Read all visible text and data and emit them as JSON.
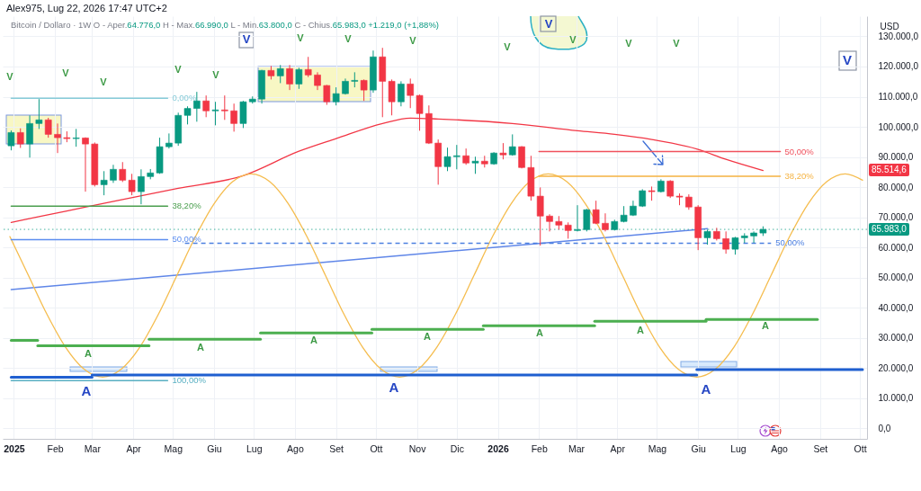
{
  "chart_data": {
    "type": "candlestick",
    "title": "Alex975, Lug 22, 2026 17:47 UTC+2",
    "subtitle": "Bitcoin / Dollaro · 1W O - Aper.64.776,0 H - Max.66.990,0 L - Min.63.800,0 C - Chius.65.983,0 +1.219,0 (+1,88%)",
    "ylabel": "USD",
    "x": [
      "2024-12-30",
      "2025-01-06",
      "2025-01-13",
      "2025-01-20",
      "2025-01-27",
      "2025-02-03",
      "2025-02-10",
      "2025-02-17",
      "2025-02-24",
      "2025-03-03",
      "2025-03-10",
      "2025-03-17",
      "2025-03-24",
      "2025-03-31",
      "2025-04-07",
      "2025-04-14",
      "2025-04-21",
      "2025-04-28",
      "2025-05-05",
      "2025-05-12",
      "2025-05-19",
      "2025-05-26",
      "2025-06-02",
      "2025-06-09",
      "2025-06-16",
      "2025-06-23",
      "2025-06-30",
      "2025-07-07",
      "2025-07-14",
      "2025-07-21",
      "2025-07-28",
      "2025-08-04",
      "2025-08-11",
      "2025-08-18",
      "2025-08-25",
      "2025-09-01",
      "2025-09-08",
      "2025-09-15",
      "2025-09-22",
      "2025-09-29",
      "2025-10-06",
      "2025-10-13",
      "2025-10-20",
      "2025-10-27",
      "2025-11-03",
      "2025-11-10",
      "2025-11-17",
      "2025-11-24",
      "2025-12-01",
      "2025-12-08",
      "2025-12-15",
      "2025-12-22",
      "2025-12-29",
      "2026-01-05",
      "2026-01-12",
      "2026-01-19",
      "2026-01-26",
      "2026-02-02",
      "2026-02-09",
      "2026-02-16",
      "2026-02-23",
      "2026-03-02",
      "2026-03-09",
      "2026-03-16",
      "2026-03-23",
      "2026-03-30",
      "2026-04-06",
      "2026-04-13",
      "2026-04-20",
      "2026-04-27",
      "2026-05-04",
      "2026-05-11",
      "2026-05-18",
      "2026-05-25",
      "2026-06-01",
      "2026-06-08",
      "2026-06-15",
      "2026-06-22",
      "2026-06-29",
      "2026-07-06",
      "2026-07-13",
      "2026-07-20"
    ],
    "ohlc": [
      [
        93700,
        98800,
        92200,
        98100
      ],
      [
        98100,
        99500,
        93000,
        94300
      ],
      [
        94300,
        103800,
        89800,
        101100
      ],
      [
        101100,
        109200,
        99300,
        102300
      ],
      [
        102300,
        103000,
        96400,
        97500
      ],
      [
        97500,
        101100,
        91300,
        96400
      ],
      [
        96400,
        98500,
        94900,
        96100
      ],
      [
        96100,
        99300,
        93400,
        96300
      ],
      [
        96300,
        96500,
        78500,
        94300
      ],
      [
        94300,
        94800,
        80200,
        80800
      ],
      [
        80800,
        85300,
        77300,
        82300
      ],
      [
        82300,
        87400,
        81400,
        85900
      ],
      [
        85900,
        88300,
        81700,
        82300
      ],
      [
        82300,
        84400,
        77300,
        78500
      ],
      [
        78500,
        85900,
        74300,
        83500
      ],
      [
        83500,
        86000,
        82600,
        84700
      ],
      [
        84700,
        96400,
        84400,
        93400
      ],
      [
        93400,
        97800,
        92800,
        94600
      ],
      [
        94600,
        104700,
        93700,
        103800
      ],
      [
        103800,
        106800,
        100800,
        106100
      ],
      [
        106100,
        111600,
        101700,
        108600
      ],
      [
        108600,
        110400,
        103200,
        105300
      ],
      [
        105300,
        108300,
        100500,
        105600
      ],
      [
        105600,
        110400,
        102300,
        105300
      ],
      [
        105300,
        107700,
        98400,
        101100
      ],
      [
        101100,
        108600,
        99600,
        108300
      ],
      [
        108300,
        110100,
        107700,
        109200
      ],
      [
        109200,
        118900,
        107700,
        118700
      ],
      [
        118700,
        120200,
        115700,
        116900
      ],
      [
        116900,
        120500,
        114500,
        119300
      ],
      [
        119300,
        120500,
        112200,
        114200
      ],
      [
        114200,
        119600,
        112600,
        119000
      ],
      [
        119000,
        123200,
        116500,
        117200
      ],
      [
        117200,
        118100,
        112200,
        113700
      ],
      [
        113700,
        113900,
        107300,
        108300
      ],
      [
        108300,
        113100,
        107100,
        111000
      ],
      [
        111000,
        116000,
        110700,
        115100
      ],
      [
        115100,
        118100,
        113100,
        115400
      ],
      [
        115400,
        115700,
        108600,
        112200
      ],
      [
        112200,
        125300,
        111300,
        123200
      ],
      [
        123200,
        126200,
        103200,
        115100
      ],
      [
        115100,
        115700,
        103800,
        108300
      ],
      [
        108300,
        115100,
        106800,
        114200
      ],
      [
        114200,
        116000,
        106200,
        110400
      ],
      [
        110400,
        110700,
        98700,
        104400
      ],
      [
        104400,
        107100,
        94300,
        94600
      ],
      [
        94600,
        95800,
        80800,
        86800
      ],
      [
        86800,
        93100,
        85300,
        90100
      ],
      [
        90100,
        94000,
        85900,
        90400
      ],
      [
        90400,
        92800,
        87400,
        88000
      ],
      [
        88000,
        90100,
        84400,
        88600
      ],
      [
        88600,
        90400,
        86500,
        87700
      ],
      [
        87700,
        91600,
        87400,
        91300
      ],
      [
        91300,
        94600,
        89200,
        90700
      ],
      [
        90700,
        97500,
        90400,
        93400
      ],
      [
        93400,
        93600,
        86200,
        86500
      ],
      [
        86500,
        90400,
        75500,
        77000
      ],
      [
        77000,
        79900,
        60600,
        70400
      ],
      [
        70400,
        71000,
        65300,
        68600
      ],
      [
        68600,
        70400,
        65900,
        67400
      ],
      [
        67400,
        68300,
        62900,
        65600
      ],
      [
        65600,
        74000,
        65300,
        65900
      ],
      [
        65900,
        72800,
        65300,
        72500
      ],
      [
        72500,
        75500,
        67700,
        68000
      ],
      [
        68000,
        71300,
        65300,
        65900
      ],
      [
        65900,
        69200,
        65600,
        68600
      ],
      [
        68600,
        73700,
        68300,
        70700
      ],
      [
        70700,
        75500,
        70400,
        73700
      ],
      [
        73700,
        79300,
        73400,
        78800
      ],
      [
        78800,
        80200,
        75500,
        78500
      ],
      [
        78500,
        82600,
        78200,
        82000
      ],
      [
        82000,
        82300,
        76400,
        77000
      ],
      [
        77000,
        77900,
        74000,
        76700
      ],
      [
        76700,
        77600,
        72500,
        73400
      ],
      [
        73400,
        74000,
        59100,
        63200
      ],
      [
        63200,
        65900,
        60900,
        65300
      ],
      [
        65300,
        66500,
        62300,
        62900
      ],
      [
        62900,
        65300,
        57900,
        59400
      ],
      [
        59400,
        63500,
        57600,
        63200
      ],
      [
        63200,
        64700,
        61500,
        63800
      ],
      [
        63800,
        65300,
        61500,
        64800
      ],
      [
        64776,
        66990,
        63800,
        65983
      ]
    ],
    "colors": [
      "#089981",
      "#f23645",
      "#089981",
      "#089981",
      "#f23645",
      "#f23645",
      "#f23645",
      "#089981",
      "#f23645",
      "#f23645",
      "#089981",
      "#089981",
      "#f23645",
      "#f23645",
      "#089981",
      "#089981",
      "#089981",
      "#089981",
      "#089981",
      "#089981",
      "#089981",
      "#f23645",
      "#089981",
      "#f23645",
      "#f23645",
      "#089981",
      "#089981",
      "#089981",
      "#f23645",
      "#089981",
      "#f23645",
      "#089981",
      "#f23645",
      "#f23645",
      "#f23645",
      "#089981",
      "#089981",
      "#089981",
      "#f23645",
      "#089981",
      "#f23645",
      "#f23645",
      "#089981",
      "#f23645",
      "#f23645",
      "#f23645",
      "#f23645",
      "#089981",
      "#089981",
      "#f23645",
      "#089981",
      "#f23645",
      "#089981",
      "#f23645",
      "#089981",
      "#f23645",
      "#f23645",
      "#f23645",
      "#f23645",
      "#f23645",
      "#f23645",
      "#089981",
      "#089981",
      "#f23645",
      "#f23645",
      "#089981",
      "#089981",
      "#089981",
      "#089981",
      "#f23645",
      "#089981",
      "#f23645",
      "#f23645",
      "#f23645",
      "#f23645",
      "#089981",
      "#f23645",
      "#f23645",
      "#089981",
      "#089981",
      "#089981",
      "#089981"
    ],
    "series": [
      {
        "type": "line",
        "color": "#f23645",
        "x": [
          "2024-12-30",
          "2025-01-20",
          "2025-02-10",
          "2025-03-24",
          "2025-05-05",
          "2025-06-23",
          "2025-08-04",
          "2025-09-01",
          "2025-10-06",
          "2025-10-27",
          "2025-11-17",
          "2026-01-12",
          "2026-03-02",
          "2026-03-30",
          "2026-04-27",
          "2026-06-01",
          "2026-06-22",
          "2026-07-20"
        ],
        "values": [
          68300,
          70200,
          72100,
          75900,
          79600,
          83800,
          91900,
          96100,
          101100,
          102900,
          102600,
          101100,
          98700,
          97500,
          95800,
          92500,
          89200,
          85500
        ]
      },
      {
        "type": "line",
        "color": "#5f86e8",
        "x": [
          "2024-12-30",
          "2026-06-08"
        ],
        "values": [
          46000,
          66200
        ]
      },
      {
        "type": "line",
        "color": "#f5bd4f",
        "x": [
          "2024-12-29",
          "2025-01-12",
          "2025-01-26",
          "2025-02-09",
          "2025-02-23",
          "2025-03-09",
          "2025-03-23",
          "2025-04-06",
          "2025-04-20",
          "2025-05-04",
          "2025-05-18",
          "2025-06-01",
          "2025-06-15",
          "2025-06-29",
          "2025-07-13",
          "2025-07-27",
          "2025-08-10",
          "2025-08-24",
          "2025-09-07",
          "2025-09-21",
          "2025-10-05",
          "2025-10-19",
          "2025-11-02",
          "2025-11-16",
          "2025-11-30",
          "2025-12-14",
          "2025-12-28",
          "2026-01-11",
          "2026-01-25",
          "2026-02-08",
          "2026-02-22",
          "2026-03-08",
          "2026-03-22",
          "2026-04-05",
          "2026-04-19",
          "2026-05-03",
          "2026-05-17",
          "2026-05-31",
          "2026-06-14",
          "2026-06-28",
          "2026-07-12",
          "2026-07-26",
          "2026-08-09",
          "2026-08-23",
          "2026-09-06",
          "2026-09-20",
          "2026-10-03"
        ],
        "values": [
          63600,
          50700,
          37800,
          26900,
          19600,
          17000,
          19600,
          26900,
          37800,
          50700,
          63600,
          74500,
          81800,
          84400,
          81800,
          74500,
          63600,
          50700,
          37800,
          26900,
          19600,
          17000,
          19600,
          26900,
          37800,
          50700,
          63600,
          74500,
          81800,
          84400,
          81800,
          74500,
          63600,
          50700,
          37800,
          26900,
          19600,
          17000,
          19600,
          26900,
          37800,
          50700,
          63600,
          74500,
          81800,
          84400,
          82300
        ]
      },
      {
        "type": "line",
        "color": "#4caf50",
        "x": [
          "2024-12-30",
          "2025-01-19"
        ],
        "values": [
          29200,
          29200
        ]
      },
      {
        "type": "line",
        "color": "#4caf50",
        "x": [
          "2025-01-19",
          "2025-04-13"
        ],
        "values": [
          27400,
          27400
        ]
      },
      {
        "type": "line",
        "color": "#4caf50",
        "x": [
          "2025-04-13",
          "2025-07-06"
        ],
        "values": [
          29500,
          29500
        ]
      },
      {
        "type": "line",
        "color": "#4caf50",
        "x": [
          "2025-07-06",
          "2025-09-28"
        ],
        "values": [
          31600,
          31600
        ]
      },
      {
        "type": "line",
        "color": "#4caf50",
        "x": [
          "2025-09-28",
          "2025-12-21"
        ],
        "values": [
          32800,
          32800
        ]
      },
      {
        "type": "line",
        "color": "#4caf50",
        "x": [
          "2025-12-21",
          "2026-03-15"
        ],
        "values": [
          34000,
          34000
        ]
      },
      {
        "type": "line",
        "color": "#4caf50",
        "x": [
          "2026-03-15",
          "2026-06-07"
        ],
        "values": [
          35500,
          35500
        ]
      },
      {
        "type": "line",
        "color": "#4caf50",
        "x": [
          "2026-06-07",
          "2026-08-30"
        ],
        "values": [
          36100,
          36100
        ]
      },
      {
        "type": "line",
        "color": "#1f5fd0",
        "x": [
          "2024-12-30",
          "2025-03-01"
        ],
        "values": [
          16900,
          16900
        ]
      },
      {
        "type": "line",
        "color": "#1f5fd0",
        "x": [
          "2025-03-01",
          "2026-05-31"
        ],
        "values": [
          17700,
          17700
        ]
      },
      {
        "type": "line",
        "color": "#1f5fd0",
        "x": [
          "2026-05-31",
          "2026-10-03"
        ],
        "values": [
          19500,
          19500
        ]
      },
      {
        "type": "line",
        "color": "#86cbd8",
        "x": [
          "2024-12-30",
          "2025-04-27"
        ],
        "values": [
          109500,
          109500
        ]
      },
      {
        "type": "line",
        "color": "#4a9e4e",
        "x": [
          "2024-12-30",
          "2025-04-27"
        ],
        "values": [
          73700,
          73700
        ]
      },
      {
        "type": "line",
        "color": "#5b8def",
        "x": [
          "2024-12-30",
          "2025-04-27"
        ],
        "values": [
          62600,
          62600
        ]
      },
      {
        "type": "line",
        "color": "#58afc2",
        "x": [
          "2024-12-30",
          "2025-04-27"
        ],
        "values": [
          15800,
          15800
        ]
      },
      {
        "type": "line",
        "color": "#f0525e",
        "x": [
          "2026-02-01",
          "2026-08-02"
        ],
        "values": [
          91800,
          91800
        ]
      },
      {
        "type": "line",
        "color": "#f5b342",
        "x": [
          "2026-02-01",
          "2026-08-02"
        ],
        "values": [
          83600,
          83600
        ]
      },
      {
        "type": "line",
        "color": "#4b7fe0",
        "line_style": "dashed",
        "x": [
          "2025-05-10",
          "2026-07-26"
        ],
        "values": [
          61400,
          61400
        ]
      }
    ],
    "xlim": [
      "2024-12-27",
      "2026-10-03"
    ],
    "xticks": [
      {
        "value": "2025-01-01",
        "label": "2025"
      },
      {
        "value": "2025-02-01",
        "label": "Feb"
      },
      {
        "value": "2025-03-01",
        "label": "Mar"
      },
      {
        "value": "2025-04-01",
        "label": "Apr"
      },
      {
        "value": "2025-05-01",
        "label": "Mag"
      },
      {
        "value": "2025-06-01",
        "label": "Giu"
      },
      {
        "value": "2025-07-01",
        "label": "Lug"
      },
      {
        "value": "2025-08-01",
        "label": "Ago"
      },
      {
        "value": "2025-09-01",
        "label": "Set"
      },
      {
        "value": "2025-10-01",
        "label": "Ott"
      },
      {
        "value": "2025-11-01",
        "label": "Nov"
      },
      {
        "value": "2025-12-01",
        "label": "Dic"
      },
      {
        "value": "2026-01-01",
        "label": "2026"
      },
      {
        "value": "2026-02-01",
        "label": "Feb"
      },
      {
        "value": "2026-03-01",
        "label": "Mar"
      },
      {
        "value": "2026-04-01",
        "label": "Apr"
      },
      {
        "value": "2026-05-01",
        "label": "Mag"
      },
      {
        "value": "2026-06-01",
        "label": "Giu"
      },
      {
        "value": "2026-07-01",
        "label": "Lug"
      },
      {
        "value": "2026-08-01",
        "label": "Ago"
      },
      {
        "value": "2026-09-01",
        "label": "Set"
      },
      {
        "value": "2026-10-01",
        "label": "Ott"
      }
    ],
    "ylim": [
      -3500,
      136700
    ],
    "yticks": [
      {
        "value": 0,
        "label": "0,0"
      },
      {
        "value": 10000,
        "label": "10.000,0"
      },
      {
        "value": 20000,
        "label": "20.000,0"
      },
      {
        "value": 30000,
        "label": "30.000,0"
      },
      {
        "value": 40000,
        "label": "40.000,0"
      },
      {
        "value": 50000,
        "label": "50.000,0"
      },
      {
        "value": 60000,
        "label": "60.000,0"
      },
      {
        "value": 70000,
        "label": "70.000,0"
      },
      {
        "value": 80000,
        "label": "80.000,0"
      },
      {
        "value": 90000,
        "label": "90.000,0"
      },
      {
        "value": 100000,
        "label": "100.000,0"
      },
      {
        "value": 110000,
        "label": "110.000,0"
      },
      {
        "value": 120000,
        "label": "120.000,0"
      },
      {
        "value": 130000,
        "label": "130.000,0"
      }
    ],
    "grid": true,
    "ref_lines": [
      {
        "axis": "y",
        "value": 65983,
        "label": "65.983,0",
        "color": "#089981",
        "line_style": "dotted"
      }
    ],
    "annotations": [
      "V",
      "V",
      "V",
      "V",
      "V",
      "V",
      "V",
      "V",
      "V",
      "V",
      "V",
      "V",
      "V",
      "V",
      "V",
      "A",
      "A",
      "A",
      "A",
      "A",
      "A",
      "A",
      "A",
      "A",
      "A",
      "85.514,6",
      {
        "text": "0,00%",
        "x": "2025-04-27",
        "y": 109500
      },
      {
        "text": "38,20%",
        "x": "2025-04-27",
        "y": 73700
      },
      {
        "text": "50,00%",
        "x": "2025-04-27",
        "y": 62600
      },
      {
        "text": "100,00%",
        "x": "2025-04-27",
        "y": 15800
      },
      {
        "text": "50,00%",
        "x": "2026-08-02",
        "y": 91800
      },
      {
        "text": "38,20%",
        "x": "2026-08-02",
        "y": 83600
      },
      {
        "text": "50,00%",
        "x": "2026-07-26",
        "y": 61400
      }
    ]
  }
}
